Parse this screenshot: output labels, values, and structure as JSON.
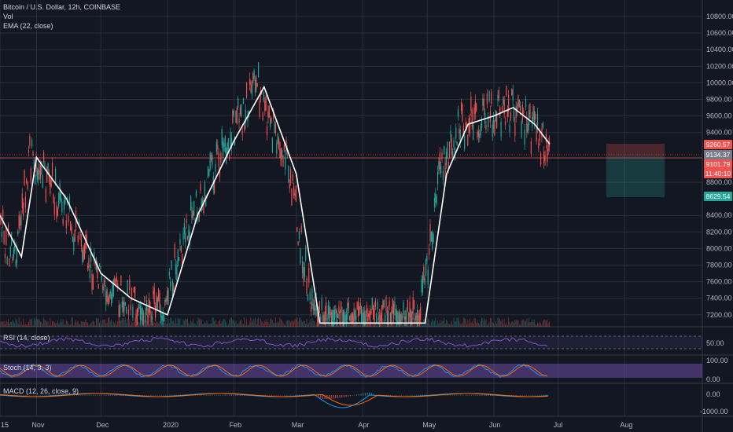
{
  "header": {
    "symbol": "Bitcoin / U.S. Dollar, 12h, COINBASE",
    "vol_label": "Vol",
    "ema_label": "EMA (22, close)"
  },
  "indicators": {
    "rsi_label": "RSI (14, close)",
    "stoch_label": "Stoch (14, 3, 3)",
    "macd_label": "MACD (12, 26, close, 9)"
  },
  "price_scale": {
    "ticks": [
      "10800.00",
      "10600.00",
      "10400.00",
      "10200.00",
      "10000.00",
      "9800.00",
      "9600.00",
      "9400.00",
      "8800.00",
      "8400.00",
      "8200.00",
      "8000.00",
      "7800.00",
      "7600.00",
      "7400.00",
      "7200.00"
    ],
    "tick_values": [
      10800,
      10600,
      10400,
      10200,
      10000,
      9800,
      9600,
      9400,
      8800,
      8400,
      8200,
      8000,
      7800,
      7600,
      7400,
      7200
    ]
  },
  "price_tags": {
    "ema_value": "9260.57",
    "last_price": "9134.37",
    "high_line": "9101.79",
    "countdown": "11:40:10",
    "target": "8629.54"
  },
  "rsi_scale": {
    "tick": "50.00"
  },
  "stoch_scale": {
    "top": "100.00",
    "bottom": "0.00"
  },
  "macd_scale": {
    "top": "0.00",
    "bottom": "-1000.00"
  },
  "time_axis": {
    "labels": [
      "15",
      "Nov",
      "Dec",
      "2020",
      "Feb",
      "Mar",
      "Apr",
      "May",
      "Jun",
      "Jul",
      "Aug"
    ]
  },
  "colors": {
    "background": "#131722",
    "up": "#26a69a",
    "down": "#ef5350",
    "ema": "#ffffff",
    "rsi": "#7e57c2",
    "macd": "#2196f3",
    "signal": "#ff6d00",
    "last_price_tag": "#ef5350",
    "target_tag": "#26a69a",
    "countdown_tag": "#ef5350",
    "ema_tag": "#ef5350",
    "mid_tag": "#787b86"
  },
  "chart_data": {
    "type": "candlestick",
    "title": "Bitcoin / U.S. Dollar, 12h, COINBASE",
    "ylim": [
      7100,
      10900
    ],
    "ema_path": [
      {
        "x": "Oct 15",
        "y": 8400
      },
      {
        "x": "Oct 25",
        "y": 7900
      },
      {
        "x": "Nov 1",
        "y": 9100
      },
      {
        "x": "Nov 15",
        "y": 8600
      },
      {
        "x": "Dec 1",
        "y": 7700
      },
      {
        "x": "Dec 15",
        "y": 7400
      },
      {
        "x": "Jan 1",
        "y": 7200
      },
      {
        "x": "Jan 15",
        "y": 8400
      },
      {
        "x": "Feb 1",
        "y": 9300
      },
      {
        "x": "Feb 15",
        "y": 9950
      },
      {
        "x": "Mar 1",
        "y": 8900
      },
      {
        "x": "Mar 12",
        "y": 7100
      },
      {
        "x": "Apr 30",
        "y": 7100
      },
      {
        "x": "May 10",
        "y": 8900
      },
      {
        "x": "May 20",
        "y": 9500
      },
      {
        "x": "Jun 1",
        "y": 9600
      },
      {
        "x": "Jun 10",
        "y": 9700
      },
      {
        "x": "Jun 20",
        "y": 9500
      },
      {
        "x": "Jun 27",
        "y": 9260
      }
    ]
  }
}
